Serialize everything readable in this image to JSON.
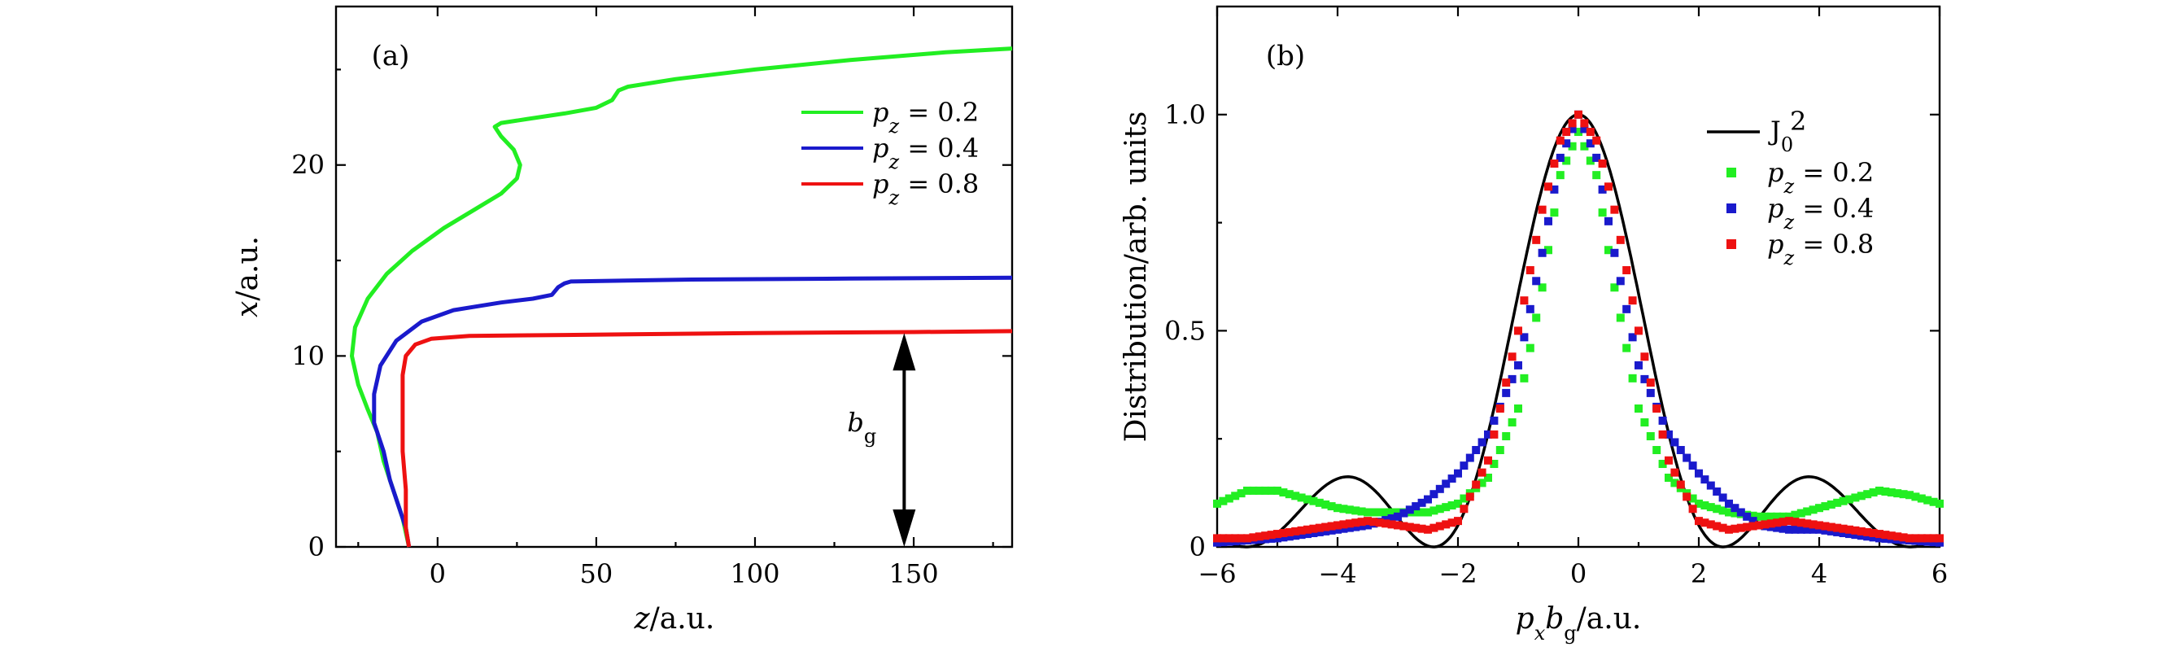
{
  "chart_data": [
    {
      "type": "line",
      "panel_label": "(a)",
      "xlabel": "z/a.u.",
      "ylabel": "x/a.u.",
      "xlim": [
        -32,
        181
      ],
      "ylim": [
        0,
        28.3
      ],
      "xticks": [
        0,
        50,
        100,
        150
      ],
      "yticks": [
        0,
        10,
        20
      ],
      "legend_position": "top-right",
      "series": [
        {
          "name": "p_z = 0.2",
          "color": "#22ee22",
          "points": [
            [
              -9,
              0
            ],
            [
              -11,
              1.5
            ],
            [
              -14,
              3
            ],
            [
              -17,
              4.5
            ],
            [
              -19,
              6
            ],
            [
              -22,
              7.2
            ],
            [
              -25,
              8.5
            ],
            [
              -27,
              10
            ],
            [
              -26,
              11.5
            ],
            [
              -22,
              13
            ],
            [
              -16,
              14.3
            ],
            [
              -8,
              15.5
            ],
            [
              2,
              16.7
            ],
            [
              12,
              17.7
            ],
            [
              20,
              18.5
            ],
            [
              25,
              19.3
            ],
            [
              26,
              20
            ],
            [
              24,
              20.8
            ],
            [
              20,
              21.5
            ],
            [
              18,
              22
            ],
            [
              20,
              22.2
            ],
            [
              28,
              22.4
            ],
            [
              40,
              22.7
            ],
            [
              50,
              23
            ],
            [
              55,
              23.4
            ],
            [
              57,
              23.9
            ],
            [
              60,
              24.1
            ],
            [
              75,
              24.5
            ],
            [
              100,
              25
            ],
            [
              130,
              25.5
            ],
            [
              160,
              25.9
            ],
            [
              181,
              26.1
            ]
          ]
        },
        {
          "name": "p_z = 0.4",
          "color": "#1a1acc",
          "points": [
            [
              -9,
              0
            ],
            [
              -10,
              1
            ],
            [
              -12,
              2
            ],
            [
              -15,
              3.5
            ],
            [
              -17,
              5
            ],
            [
              -20,
              6.5
            ],
            [
              -20,
              8
            ],
            [
              -18,
              9.5
            ],
            [
              -13,
              10.8
            ],
            [
              -5,
              11.8
            ],
            [
              5,
              12.4
            ],
            [
              20,
              12.8
            ],
            [
              30,
              13
            ],
            [
              36,
              13.2
            ],
            [
              38,
              13.6
            ],
            [
              40,
              13.8
            ],
            [
              42,
              13.9
            ],
            [
              80,
              14
            ],
            [
              130,
              14.05
            ],
            [
              181,
              14.1
            ]
          ]
        },
        {
          "name": "p_z = 0.8",
          "color": "#ee1111",
          "points": [
            [
              -9,
              0
            ],
            [
              -10,
              1
            ],
            [
              -10,
              3
            ],
            [
              -11,
              5
            ],
            [
              -11,
              7
            ],
            [
              -11,
              9
            ],
            [
              -10,
              10
            ],
            [
              -7,
              10.6
            ],
            [
              -2,
              10.9
            ],
            [
              10,
              11.05
            ],
            [
              40,
              11.1
            ],
            [
              100,
              11.2
            ],
            [
              150,
              11.25
            ],
            [
              181,
              11.3
            ]
          ]
        }
      ],
      "annotation": {
        "label": "b_g",
        "x": 147,
        "y_from": 0,
        "y_to": 11.2
      }
    },
    {
      "type": "scatter",
      "panel_label": "(b)",
      "xlabel": "p_x b_g/a.u.",
      "ylabel": "Distribution/arb. units",
      "xlim": [
        -6,
        6
      ],
      "ylim": [
        0,
        1.25
      ],
      "xticks": [
        -6,
        -4,
        -2,
        0,
        2,
        4,
        6
      ],
      "yticks": [
        0,
        0.5,
        1.0
      ],
      "ytick_labels": [
        "0",
        "0.5",
        "1.0"
      ],
      "legend_position": "top-right",
      "series": [
        {
          "name": "J_0^2",
          "style": "line",
          "color": "#000000",
          "function": "bessel_j0_squared"
        },
        {
          "name": "p_z = 0.2",
          "style": "markers",
          "color": "#22ee22",
          "points": [
            [
              -6,
              0.1
            ],
            [
              -5.5,
              0.13
            ],
            [
              -5,
              0.13
            ],
            [
              -4.5,
              0.11
            ],
            [
              -4,
              0.09
            ],
            [
              -3.5,
              0.08
            ],
            [
              -3,
              0.08
            ],
            [
              -2.5,
              0.08
            ],
            [
              -2,
              0.1
            ],
            [
              -1.5,
              0.16
            ],
            [
              -1,
              0.32
            ],
            [
              -0.6,
              0.6
            ],
            [
              -0.3,
              0.86
            ],
            [
              0,
              0.96
            ],
            [
              0.3,
              0.86
            ],
            [
              0.6,
              0.6
            ],
            [
              1,
              0.32
            ],
            [
              1.5,
              0.16
            ],
            [
              2,
              0.1
            ],
            [
              2.5,
              0.08
            ],
            [
              3,
              0.07
            ],
            [
              3.5,
              0.07
            ],
            [
              4,
              0.09
            ],
            [
              4.5,
              0.11
            ],
            [
              5,
              0.13
            ],
            [
              5.5,
              0.12
            ],
            [
              6,
              0.1
            ]
          ]
        },
        {
          "name": "p_z = 0.4",
          "style": "markers",
          "color": "#1a1acc",
          "points": [
            [
              -6,
              0.01
            ],
            [
              -5.5,
              0.015
            ],
            [
              -5,
              0.02
            ],
            [
              -4.5,
              0.03
            ],
            [
              -4,
              0.04
            ],
            [
              -3.5,
              0.05
            ],
            [
              -3,
              0.07
            ],
            [
              -2.5,
              0.11
            ],
            [
              -2,
              0.17
            ],
            [
              -1.5,
              0.26
            ],
            [
              -1,
              0.42
            ],
            [
              -0.6,
              0.68
            ],
            [
              -0.3,
              0.9
            ],
            [
              0,
              1.0
            ],
            [
              0.3,
              0.9
            ],
            [
              0.6,
              0.68
            ],
            [
              1,
              0.42
            ],
            [
              1.5,
              0.26
            ],
            [
              2,
              0.17
            ],
            [
              2.5,
              0.1
            ],
            [
              3,
              0.05
            ],
            [
              3.5,
              0.04
            ],
            [
              4,
              0.04
            ],
            [
              4.5,
              0.03
            ],
            [
              5,
              0.02
            ],
            [
              5.5,
              0.015
            ],
            [
              6,
              0.01
            ]
          ]
        },
        {
          "name": "p_z = 0.8",
          "style": "markers",
          "color": "#ee1111",
          "points": [
            [
              -6,
              0.02
            ],
            [
              -5.5,
              0.02
            ],
            [
              -5,
              0.03
            ],
            [
              -4.5,
              0.04
            ],
            [
              -4,
              0.05
            ],
            [
              -3.5,
              0.06
            ],
            [
              -3,
              0.05
            ],
            [
              -2.5,
              0.04
            ],
            [
              -2,
              0.06
            ],
            [
              -1.5,
              0.2
            ],
            [
              -1,
              0.5
            ],
            [
              -0.6,
              0.78
            ],
            [
              -0.3,
              0.94
            ],
            [
              0,
              1.0
            ],
            [
              0.3,
              0.94
            ],
            [
              0.6,
              0.78
            ],
            [
              1,
              0.5
            ],
            [
              1.5,
              0.2
            ],
            [
              2,
              0.06
            ],
            [
              2.5,
              0.04
            ],
            [
              3,
              0.05
            ],
            [
              3.5,
              0.06
            ],
            [
              4,
              0.05
            ],
            [
              4.5,
              0.04
            ],
            [
              5,
              0.03
            ],
            [
              5.5,
              0.02
            ],
            [
              6,
              0.02
            ]
          ]
        }
      ]
    }
  ]
}
